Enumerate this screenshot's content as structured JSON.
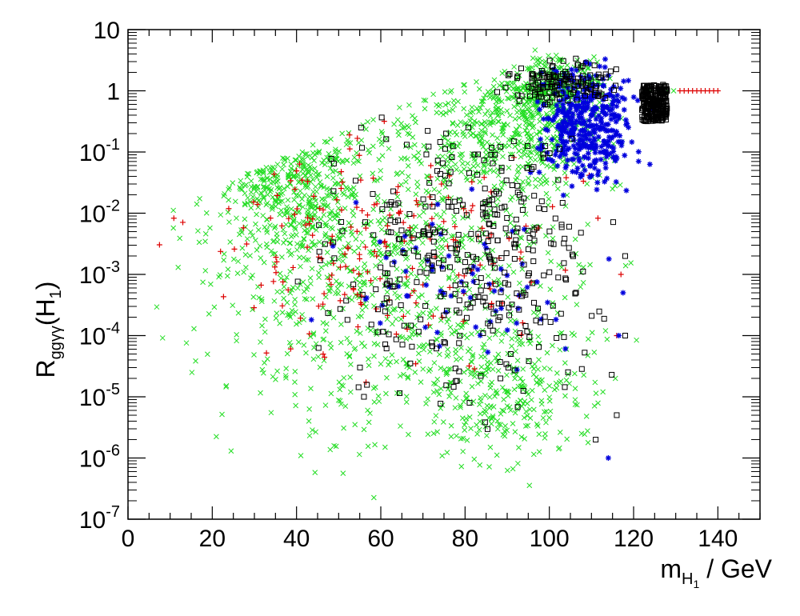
{
  "chart_data": {
    "type": "scatter",
    "xlabel": {
      "main": "m",
      "sub": "H",
      "subsub": "1",
      "rest": " / GeV"
    },
    "ylabel": {
      "main": "R",
      "sub": "ggγγ",
      "pre": "(H",
      "sub2": "1",
      "post": ")"
    },
    "xlim": [
      0,
      150
    ],
    "ylim_log10": [
      -7,
      1
    ],
    "yscale": "log",
    "x_ticks": [
      "0",
      "20",
      "40",
      "60",
      "80",
      "100",
      "120",
      "140"
    ],
    "x_tick_values": [
      0,
      20,
      40,
      60,
      80,
      100,
      120,
      140
    ],
    "y_ticks": [
      {
        "value": 1,
        "base": "10",
        "exp": ""
      },
      {
        "value": 0,
        "base": "1",
        "exp": ""
      },
      {
        "value": -1,
        "base": "10",
        "exp": "-1"
      },
      {
        "value": -2,
        "base": "10",
        "exp": "-2"
      },
      {
        "value": -3,
        "base": "10",
        "exp": "-3"
      },
      {
        "value": -4,
        "base": "10",
        "exp": "-4"
      },
      {
        "value": -5,
        "base": "10",
        "exp": "-5"
      },
      {
        "value": -6,
        "base": "10",
        "exp": "-6"
      },
      {
        "value": -7,
        "base": "10",
        "exp": "-7"
      }
    ],
    "series": [
      {
        "name": "green-x",
        "marker": "x",
        "color": "#22dd22",
        "clusters": [
          {
            "x": [
              4,
              120
            ],
            "y": [
              -6.5,
              0.4
            ],
            "n": 900
          },
          {
            "x": [
              20,
              60
            ],
            "y": [
              -3.5,
              0.3
            ],
            "n": 350
          },
          {
            "x": [
              60,
              120
            ],
            "y": [
              -2,
              0.7
            ],
            "n": 500
          },
          {
            "x": [
              85,
              118
            ],
            "y": [
              -0.6,
              0.7
            ],
            "n": 300
          },
          {
            "x": [
              65,
              115
            ],
            "y": [
              -6.4,
              -3.5
            ],
            "n": 260
          }
        ],
        "points": [
          [
            122.5,
            0
          ],
          [
            124,
            0
          ],
          [
            126,
            0
          ],
          [
            128,
            0
          ],
          [
            129.5,
            0
          ]
        ]
      },
      {
        "name": "red-plus",
        "marker": "+",
        "color": "#dd0000",
        "clusters": [
          {
            "x": [
              7,
              120
            ],
            "y": [
              -5.2,
              0.1
            ],
            "n": 200
          }
        ],
        "points": [
          [
            131,
            0
          ],
          [
            132,
            0
          ],
          [
            133,
            0
          ],
          [
            134,
            0
          ],
          [
            135,
            0
          ],
          [
            136,
            0
          ],
          [
            137,
            0
          ],
          [
            138,
            0
          ],
          [
            139,
            0
          ],
          [
            140,
            0
          ],
          [
            117,
            -3.0
          ],
          [
            116,
            -4.0
          ]
        ]
      },
      {
        "name": "blue-star",
        "marker": "*",
        "color": "#0000dd",
        "clusters": [
          {
            "x": [
              95,
              123
            ],
            "y": [
              -1.7,
              0.7
            ],
            "n": 420
          },
          {
            "x": [
              35,
              115
            ],
            "y": [
              -5.0,
              -1.4
            ],
            "n": 70
          }
        ],
        "points": [
          [
            117.5,
            -3.3
          ],
          [
            116.5,
            -4.0
          ],
          [
            114,
            -6.0
          ]
        ]
      },
      {
        "name": "black-square",
        "marker": "square",
        "color": "#000000",
        "clusters": [
          {
            "x": [
              40,
              119
            ],
            "y": [
              -5.7,
              0.5
            ],
            "n": 380
          },
          {
            "x": [
              88,
              118
            ],
            "y": [
              -0.3,
              0.6
            ],
            "n": 130
          }
        ],
        "band": {
          "x": [
            122,
            128
          ],
          "y": [
            -0.5,
            0.1
          ],
          "n": 260
        },
        "points": [
          [
            56,
            -5.0
          ],
          [
            111,
            -5.7
          ],
          [
            116,
            -5.3
          ],
          [
            118,
            -2.7
          ],
          [
            118,
            -4.0
          ]
        ]
      }
    ]
  }
}
